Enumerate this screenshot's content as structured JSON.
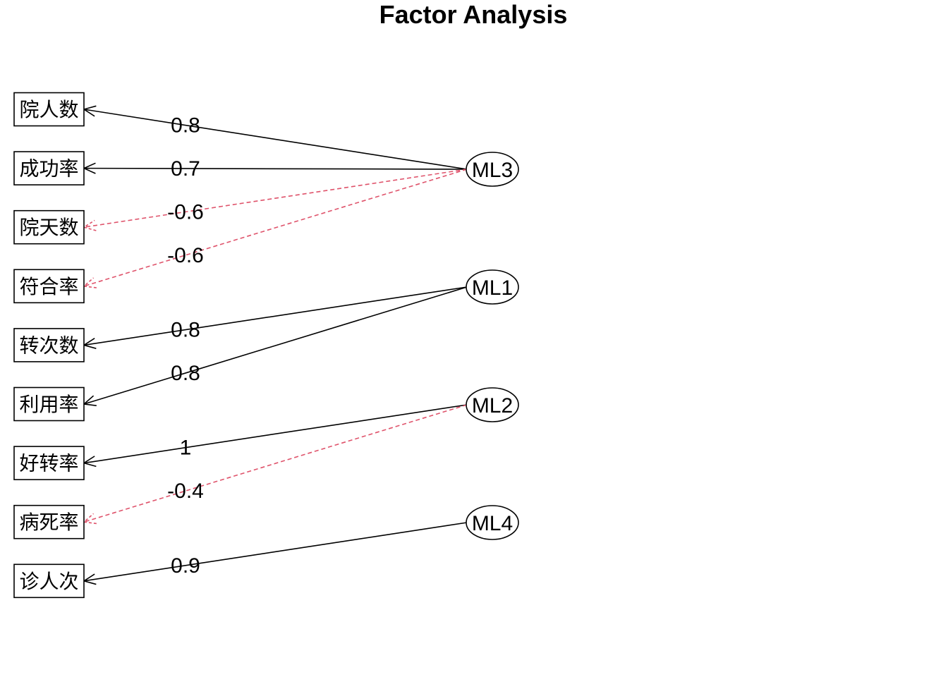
{
  "title": "Factor Analysis",
  "variables": [
    {
      "id": "v1",
      "label": "院人数"
    },
    {
      "id": "v2",
      "label": "成功率"
    },
    {
      "id": "v3",
      "label": "院天数"
    },
    {
      "id": "v4",
      "label": "符合率"
    },
    {
      "id": "v5",
      "label": "转次数"
    },
    {
      "id": "v6",
      "label": "利用率"
    },
    {
      "id": "v7",
      "label": "好转率"
    },
    {
      "id": "v8",
      "label": "病死率"
    },
    {
      "id": "v9",
      "label": "诊人次"
    }
  ],
  "factors": [
    {
      "id": "ML3",
      "label": "ML3"
    },
    {
      "id": "ML1",
      "label": "ML1"
    },
    {
      "id": "ML2",
      "label": "ML2"
    },
    {
      "id": "ML4",
      "label": "ML4"
    }
  ],
  "loadings": [
    {
      "factor": "ML3",
      "variable": "v1",
      "label": "0.8",
      "value": 0.8
    },
    {
      "factor": "ML3",
      "variable": "v2",
      "label": "0.7",
      "value": 0.7
    },
    {
      "factor": "ML3",
      "variable": "v3",
      "label": "-0.6",
      "value": -0.6
    },
    {
      "factor": "ML3",
      "variable": "v4",
      "label": "-0.6",
      "value": -0.6
    },
    {
      "factor": "ML1",
      "variable": "v5",
      "label": "0.8",
      "value": 0.8
    },
    {
      "factor": "ML1",
      "variable": "v6",
      "label": "0.8",
      "value": 0.8
    },
    {
      "factor": "ML2",
      "variable": "v7",
      "label": "1",
      "value": 1
    },
    {
      "factor": "ML2",
      "variable": "v8",
      "label": "-0.4",
      "value": -0.4
    },
    {
      "factor": "ML4",
      "variable": "v9",
      "label": "0.9",
      "value": 0.9
    }
  ],
  "colors": {
    "positive": "#000000",
    "negative": "#DF536B",
    "background": "#FFFFFF"
  }
}
